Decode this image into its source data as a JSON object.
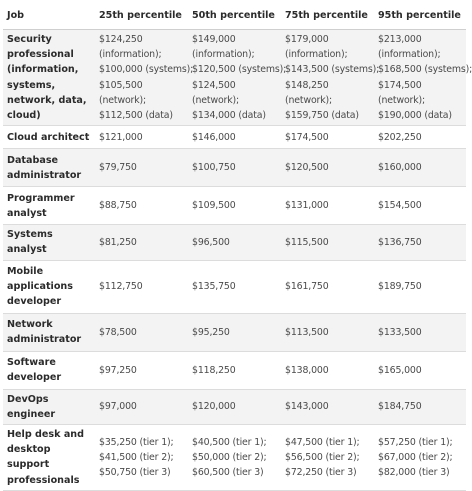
{
  "table": {
    "headers": [
      "Job",
      "25th percentile",
      "50th percentile",
      "75th percentile",
      "95th percentile"
    ],
    "rows": [
      {
        "job": "Security professional (information, systems, network, data, cloud)",
        "cells": [
          [
            "$124,250",
            "(information);",
            "$100,000 (systems);",
            "$105,500",
            "(network);",
            "$112,500 (data)"
          ],
          [
            "$149,000",
            "(information);",
            "$120,500 (systems);",
            "$124,500",
            "(network);",
            "$134,000 (data)"
          ],
          [
            "$179,000",
            "(information);",
            "$143,500 (systems);",
            "$148,250",
            "(network);",
            "$159,750 (data)"
          ],
          [
            "$213,000",
            "(information);",
            "$168,500 (systems);",
            "$174,500",
            "(network);",
            "$190,000 (data)"
          ]
        ]
      },
      {
        "job": "Cloud architect",
        "cells": [
          [
            "$121,000"
          ],
          [
            "$146,000"
          ],
          [
            "$174,500"
          ],
          [
            "$202,250"
          ]
        ]
      },
      {
        "job": "Database administrator",
        "cells": [
          [
            "$79,750"
          ],
          [
            "$100,750"
          ],
          [
            "$120,500"
          ],
          [
            "$160,000"
          ]
        ]
      },
      {
        "job": "Programmer analyst",
        "cells": [
          [
            "$88,750"
          ],
          [
            "$109,500"
          ],
          [
            "$131,000"
          ],
          [
            "$154,500"
          ]
        ]
      },
      {
        "job": "Systems analyst",
        "cells": [
          [
            "$81,250"
          ],
          [
            "$96,500"
          ],
          [
            "$115,500"
          ],
          [
            "$136,750"
          ]
        ]
      },
      {
        "job": "Mobile applications developer",
        "cells": [
          [
            "$112,750"
          ],
          [
            "$135,750"
          ],
          [
            "$161,750"
          ],
          [
            "$189,750"
          ]
        ]
      },
      {
        "job": "Network administrator",
        "cells": [
          [
            "$78,500"
          ],
          [
            "$95,250"
          ],
          [
            "$113,500"
          ],
          [
            "$133,500"
          ]
        ]
      },
      {
        "job": "Software developer",
        "cells": [
          [
            "$97,250"
          ],
          [
            "$118,250"
          ],
          [
            "$138,000"
          ],
          [
            "$165,000"
          ]
        ]
      },
      {
        "job": "DevOps engineer",
        "cells": [
          [
            "$97,000"
          ],
          [
            "$120,000"
          ],
          [
            "$143,000"
          ],
          [
            "$184,750"
          ]
        ]
      },
      {
        "job": "Help desk and desktop support professionals",
        "cells": [
          [
            "$35,250 (tier 1);",
            "$41,500 (tier 2);",
            "$50,750 (tier 3)"
          ],
          [
            "$40,500 (tier 1);",
            "$50,000 (tier 2);",
            "$60,500 (tier 3)"
          ],
          [
            "$47,500 (tier 1);",
            "$56,500 (tier 2);",
            "$72,250 (tier 3)"
          ],
          [
            "$57,250 (tier 1);",
            "$67,000 (tier 2);",
            "$82,000 (tier 3)"
          ]
        ]
      }
    ]
  }
}
